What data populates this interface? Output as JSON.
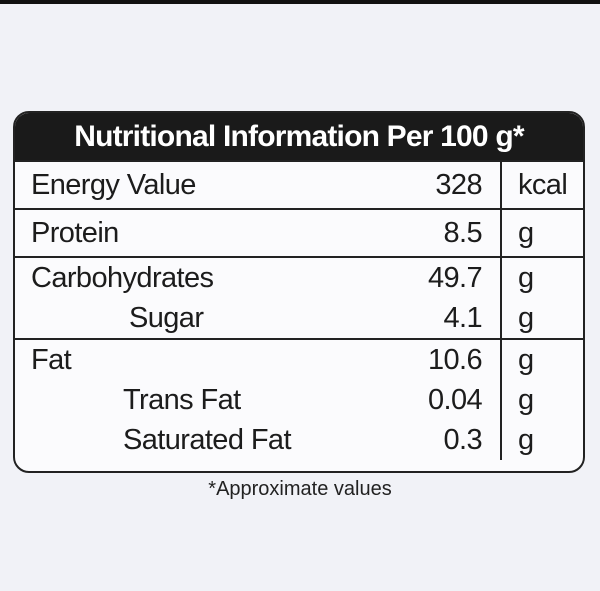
{
  "table": {
    "title": "Nutritional Information Per 100 g*",
    "rows": [
      {
        "name": "Energy Value",
        "value": "328",
        "unit": "kcal"
      },
      {
        "name": "Protein",
        "value": "8.5",
        "unit": "g"
      },
      {
        "name": "Carbohydrates",
        "value": "49.7",
        "unit": "g"
      },
      {
        "name": "Sugar",
        "value": "4.1",
        "unit": "g"
      },
      {
        "name": "Fat",
        "value": "10.6",
        "unit": "g"
      },
      {
        "name": "Trans Fat",
        "value": "0.04",
        "unit": "g"
      },
      {
        "name": "Saturated Fat",
        "value": "0.3",
        "unit": "g"
      }
    ]
  },
  "footnote": "*Approximate values",
  "colors": {
    "header_bg": "#1a1a1a",
    "header_text": "#ffffff",
    "border": "#222222",
    "page_bg": "#f1f2f7"
  }
}
